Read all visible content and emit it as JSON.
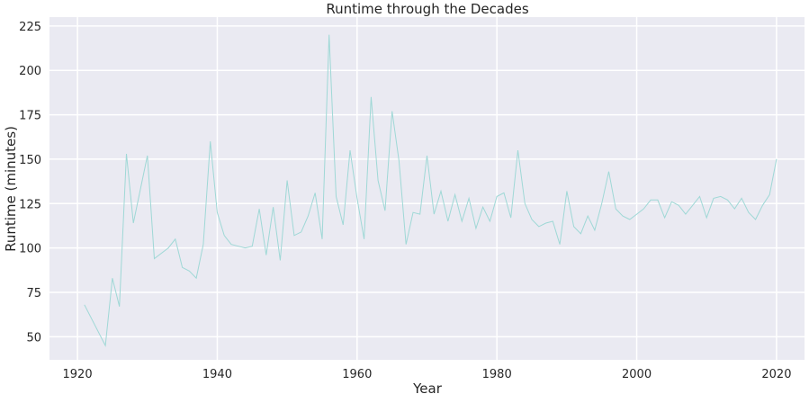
{
  "chart_data": {
    "type": "line",
    "title": "Runtime through the Decades",
    "xlabel": "Year",
    "ylabel": "Runtime (minutes)",
    "xlim": [
      1916,
      2024
    ],
    "ylim": [
      37,
      230
    ],
    "xticks": [
      1920,
      1940,
      1960,
      1980,
      2000,
      2020
    ],
    "yticks": [
      50,
      75,
      100,
      125,
      150,
      175,
      200,
      225
    ],
    "grid": true,
    "line_color": "#9fd8d6",
    "background_color": "#eaeaf2",
    "series": [
      {
        "x": [
          1921,
          1924,
          1925,
          1926,
          1927,
          1928,
          1929,
          1930,
          1931,
          1933,
          1934,
          1935,
          1936,
          1937,
          1938,
          1939,
          1940,
          1941,
          1942,
          1943,
          1944,
          1945,
          1946,
          1947,
          1948,
          1949,
          1950,
          1951,
          1952,
          1953,
          1954,
          1955,
          1956,
          1957,
          1958,
          1959,
          1960,
          1961,
          1962,
          1963,
          1964,
          1965,
          1966,
          1967,
          1968,
          1969,
          1970,
          1971,
          1972,
          1973,
          1974,
          1975,
          1976,
          1977,
          1978,
          1979,
          1980,
          1981,
          1982,
          1983,
          1984,
          1985,
          1986,
          1987,
          1988,
          1989,
          1990,
          1991,
          1992,
          1993,
          1994,
          1995,
          1996,
          1997,
          1998,
          1999,
          2000,
          2001,
          2002,
          2003,
          2004,
          2005,
          2006,
          2007,
          2008,
          2009,
          2010,
          2011,
          2012,
          2013,
          2014,
          2015,
          2016,
          2017,
          2018,
          2019,
          2020
        ],
        "y": [
          68,
          45,
          83,
          67,
          153,
          114,
          133,
          152,
          94,
          100,
          105,
          89,
          87,
          83,
          102,
          160,
          120,
          107,
          102,
          101,
          100,
          101,
          122,
          96,
          123,
          93,
          138,
          107,
          109,
          118,
          131,
          105,
          220,
          129,
          113,
          155,
          128,
          105,
          185,
          138,
          121,
          177,
          149,
          102,
          120,
          119,
          152,
          119,
          132,
          115,
          130,
          115,
          128,
          111,
          123,
          115,
          129,
          131,
          117,
          155,
          125,
          116,
          112,
          114,
          115,
          102,
          132,
          112,
          108,
          118,
          110,
          125,
          143,
          122,
          118,
          116,
          119,
          122,
          127,
          127,
          117,
          126,
          124,
          119,
          124,
          129,
          117,
          128,
          129,
          127,
          122,
          128,
          120,
          116,
          124,
          130,
          150
        ]
      }
    ]
  }
}
